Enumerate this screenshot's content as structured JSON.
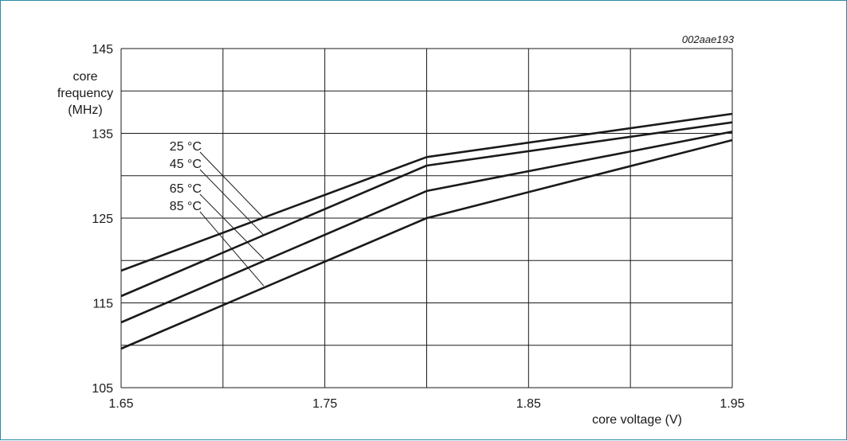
{
  "figure_code": "002aae193",
  "chart_data": {
    "type": "line",
    "ylabel_lines": [
      "core",
      "frequency",
      "(MHz)"
    ],
    "xlabel": "core voltage (V)",
    "xlim": [
      1.65,
      1.95
    ],
    "ylim": [
      105,
      145
    ],
    "x_ticks": [
      1.65,
      1.7,
      1.75,
      1.8,
      1.85,
      1.9,
      1.95
    ],
    "x_tick_labels": [
      "1.65",
      "",
      "1.75",
      "",
      "1.85",
      "",
      "1.95"
    ],
    "y_ticks": [
      105,
      110,
      115,
      120,
      125,
      130,
      135,
      140,
      145
    ],
    "y_tick_labels": [
      "105",
      "",
      "115",
      "",
      "125",
      "",
      "135",
      "",
      "145"
    ],
    "grid": true,
    "series": [
      {
        "name": "25 °C",
        "x": [
          1.65,
          1.8,
          1.95
        ],
        "y": [
          118.8,
          132.2,
          137.3
        ],
        "label_anchor": [
          1.72,
          125.0
        ]
      },
      {
        "name": "45 °C",
        "x": [
          1.65,
          1.8,
          1.95
        ],
        "y": [
          115.8,
          131.2,
          136.3
        ],
        "label_anchor": [
          1.72,
          123.0
        ]
      },
      {
        "name": "65 °C",
        "x": [
          1.65,
          1.8,
          1.95
        ],
        "y": [
          112.7,
          128.2,
          135.2
        ],
        "label_anchor": [
          1.72,
          120.2
        ]
      },
      {
        "name": "85 °C",
        "x": [
          1.65,
          1.8,
          1.95
        ],
        "y": [
          109.6,
          125.0,
          134.2
        ],
        "label_anchor": [
          1.72,
          117.0
        ]
      }
    ]
  }
}
